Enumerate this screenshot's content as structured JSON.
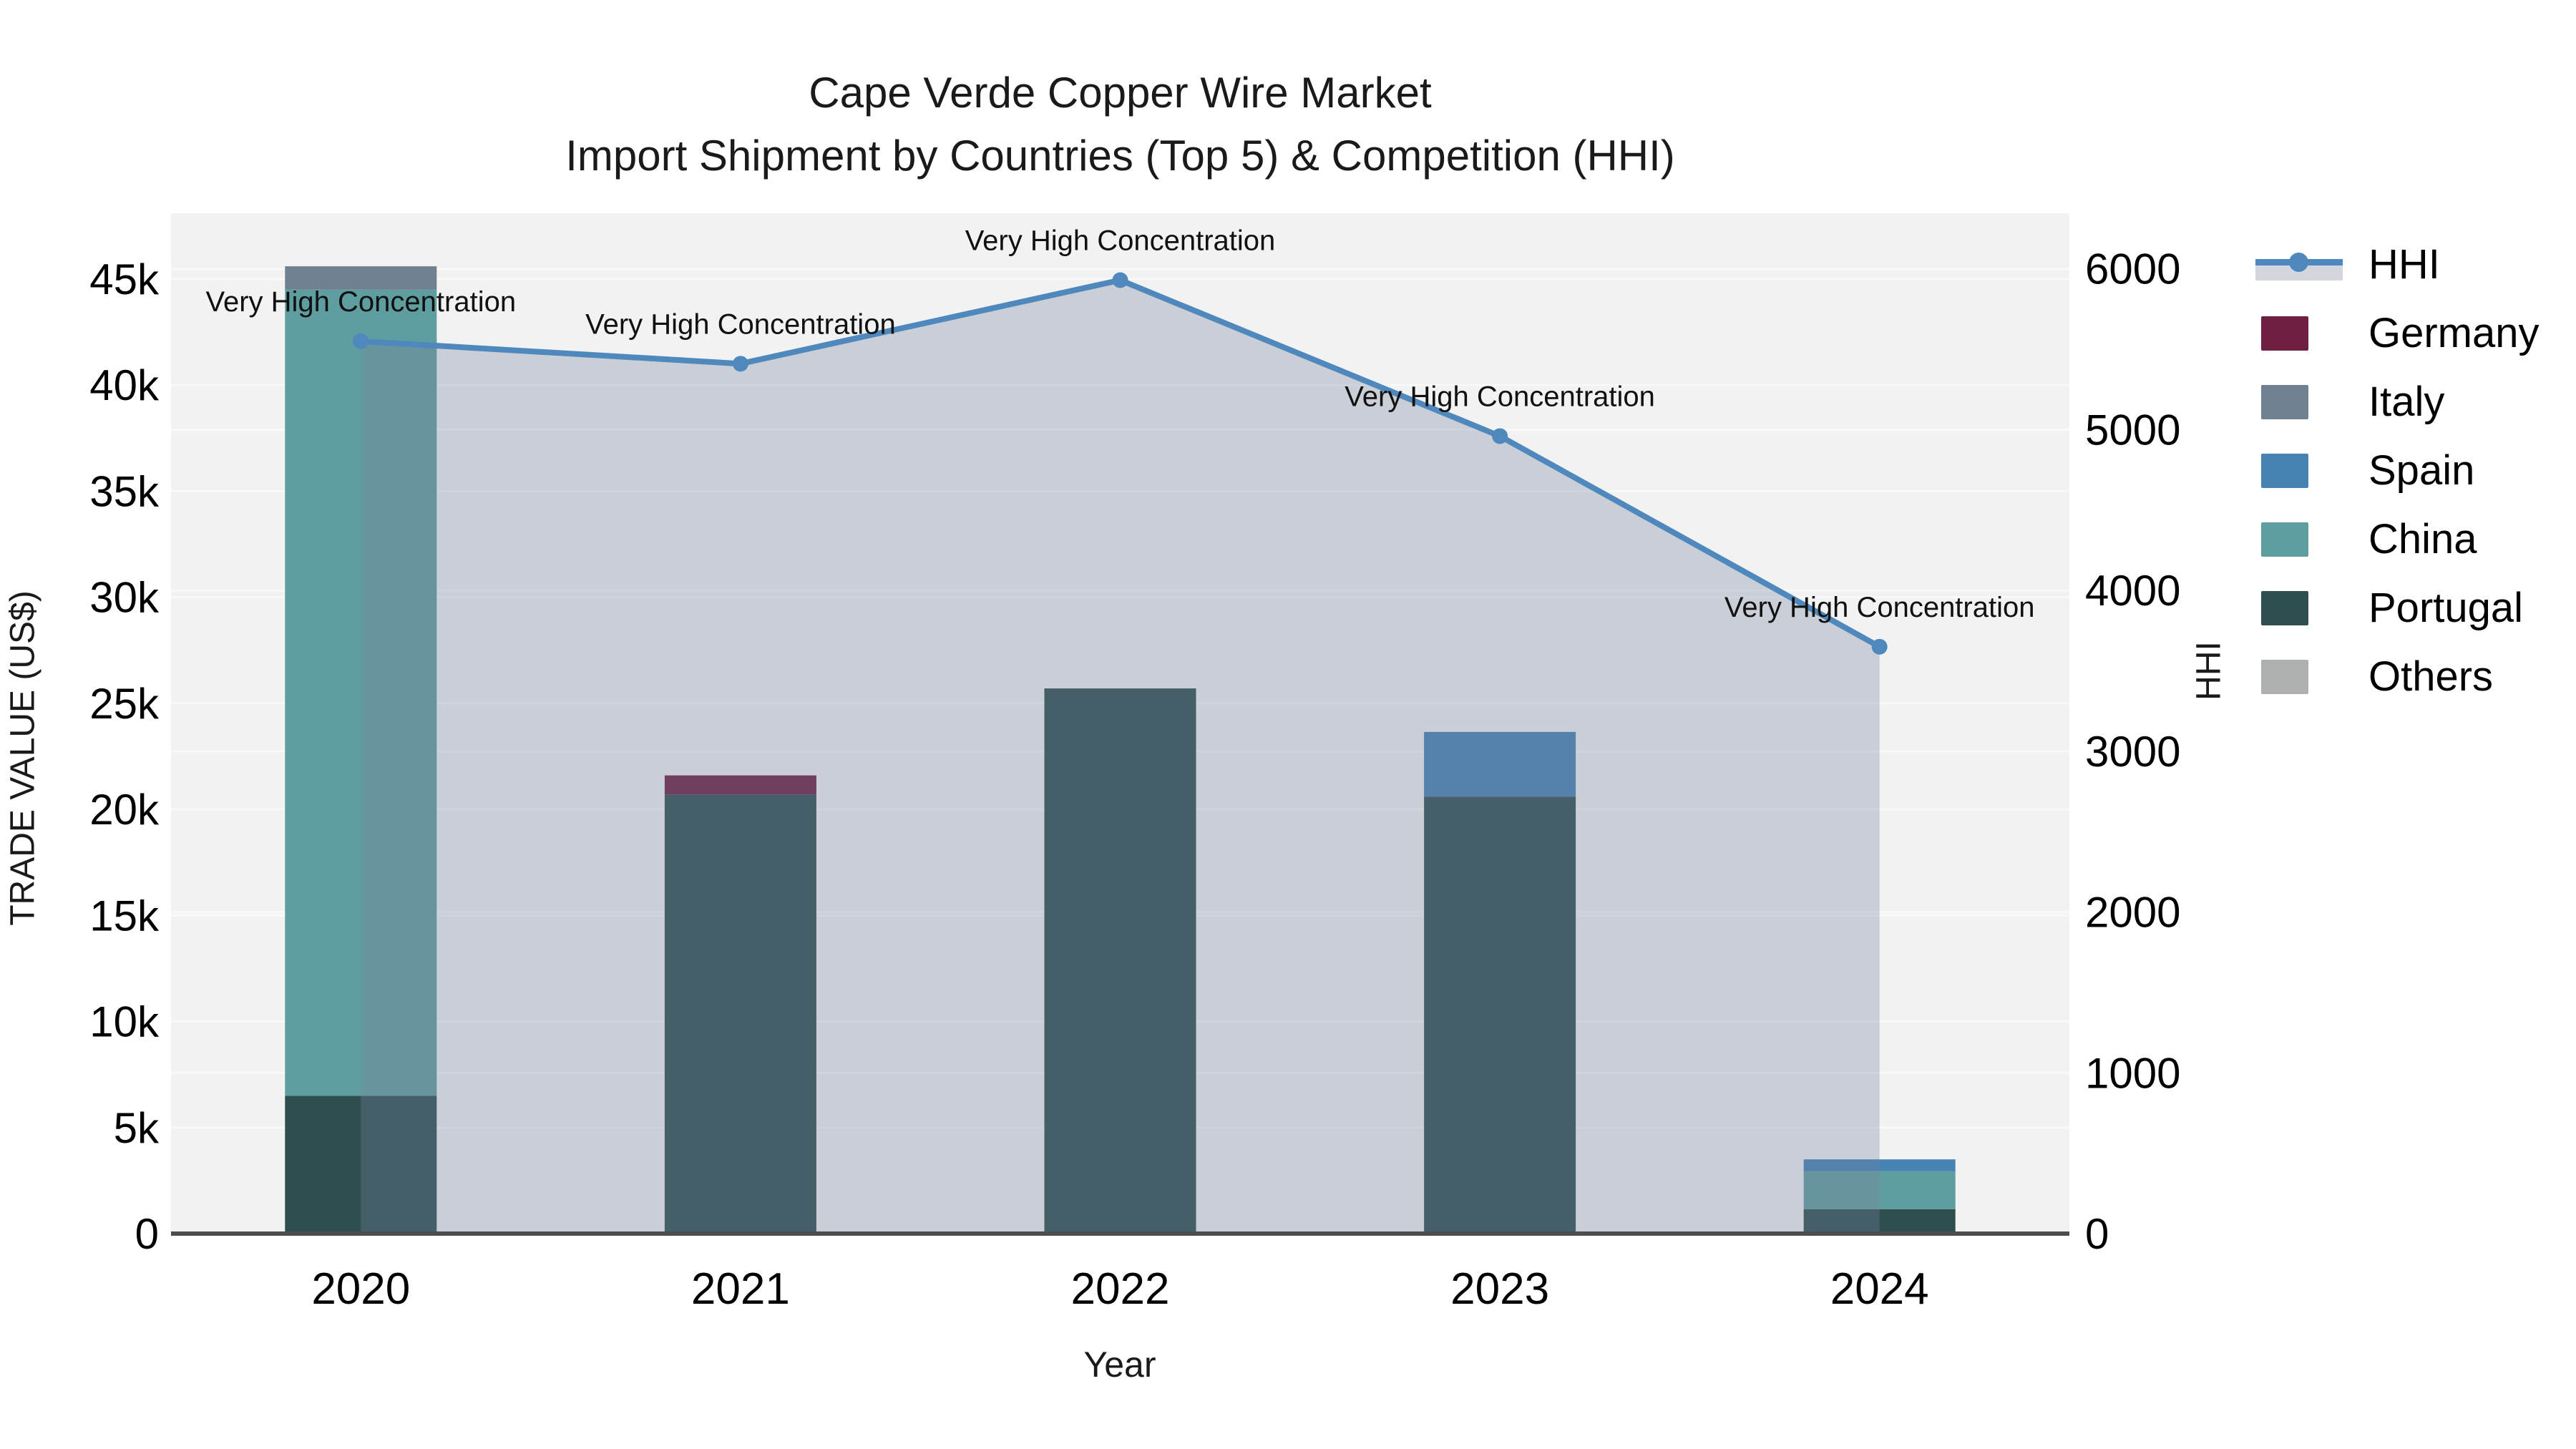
{
  "title": {
    "line1": "Cape Verde Copper Wire Market",
    "line2": "Import Shipment by Countries (Top 5) & Competition (HHI)"
  },
  "axis_labels": {
    "left": "TRADE VALUE (US$)",
    "right": "HHI",
    "bottom": "Year"
  },
  "annotation_text": "Very High Concentration",
  "legend": {
    "order": [
      "HHI",
      "Germany",
      "Italy",
      "Spain",
      "China",
      "Portugal",
      "Others"
    ]
  },
  "chart_data": {
    "type": "bar+line",
    "title": "Cape Verde Copper Wire Market — Import Shipment by Countries (Top 5) & Competition (HHI)",
    "categories": [
      "2020",
      "2021",
      "2022",
      "2023",
      "2024"
    ],
    "bar_series": [
      {
        "name": "Others",
        "color": "#AEB0AF",
        "values": [
          0,
          0,
          0,
          0,
          0
        ]
      },
      {
        "name": "Portugal",
        "color": "#2F4F4F",
        "values": [
          6500,
          20700,
          25700,
          20600,
          1150
        ]
      },
      {
        "name": "China",
        "color": "#5F9EA0",
        "values": [
          38000,
          0,
          0,
          0,
          1800
        ]
      },
      {
        "name": "Spain",
        "color": "#4682B4",
        "values": [
          0,
          0,
          0,
          3050,
          550
        ]
      },
      {
        "name": "Italy",
        "color": "#708090",
        "values": [
          1100,
          0,
          0,
          0,
          0
        ]
      },
      {
        "name": "Germany",
        "color": "#6E1F42",
        "values": [
          0,
          900,
          0,
          0,
          0
        ]
      }
    ],
    "line_series": {
      "name": "HHI",
      "color": "#4E88BC",
      "area_fill": "rgba(118,132,160,0.32)",
      "values": [
        5550,
        5410,
        5930,
        4960,
        3650
      ],
      "point_annotations": [
        "Very High Concentration",
        "Very High Concentration",
        "Very High Concentration",
        "Very High Concentration",
        "Very High Concentration"
      ]
    },
    "y_left": {
      "label": "TRADE VALUE (US$)",
      "tick_values": [
        0,
        5000,
        10000,
        15000,
        20000,
        25000,
        30000,
        35000,
        40000,
        45000
      ],
      "tick_labels": [
        "0",
        "5k",
        "10k",
        "15k",
        "20k",
        "25k",
        "30k",
        "35k",
        "40k",
        "45k"
      ],
      "axis_max": 48100
    },
    "y_right": {
      "label": "HHI",
      "tick_values": [
        0,
        1000,
        2000,
        3000,
        4000,
        5000,
        6000
      ],
      "tick_labels": [
        "0",
        "1000",
        "2000",
        "3000",
        "4000",
        "5000",
        "6000"
      ],
      "axis_max": 6346
    },
    "x_label": "Year",
    "plot_bg": "#F2F2F2",
    "grid_color": "#FFFFFF",
    "spine_color": "#4D4D4D",
    "legend_position": "right"
  }
}
